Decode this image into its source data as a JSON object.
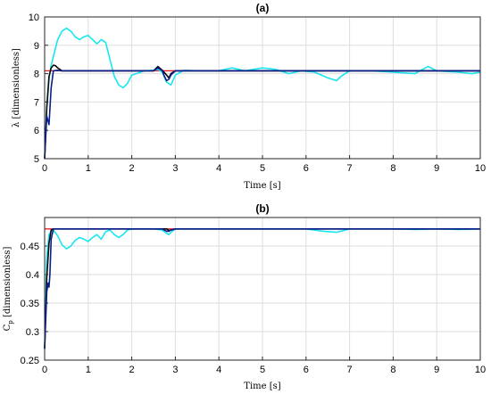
{
  "colors": {
    "reference": "#e8202a",
    "cyan": "#19e6f0",
    "navy": "#0b1f8c",
    "black": "#0a0a0a",
    "grid": "#dedede",
    "axis": "#262626"
  },
  "chart_data": [
    {
      "type": "line",
      "title": "(a)",
      "xlabel": "Time  [s]",
      "ylabel": "λ  [dimensionless]",
      "xlim": [
        0,
        10
      ],
      "ylim": [
        5,
        10
      ],
      "xticks": [
        "0",
        "1",
        "2",
        "3",
        "4",
        "5",
        "6",
        "7",
        "8",
        "9",
        "10"
      ],
      "yticks": [
        "5",
        "6",
        "7",
        "8",
        "9",
        "10"
      ],
      "grid": true,
      "series": [
        {
          "color_key": "reference",
          "x": [
            0,
            10
          ],
          "y": [
            8.1,
            8.1
          ]
        },
        {
          "color_key": "cyan",
          "x": [
            0,
            0.05,
            0.1,
            0.15,
            0.2,
            0.3,
            0.4,
            0.5,
            0.6,
            0.7,
            0.8,
            0.9,
            1.0,
            1.1,
            1.2,
            1.3,
            1.4,
            1.5,
            1.6,
            1.7,
            1.8,
            1.9,
            2.0,
            2.1,
            2.2,
            2.3,
            2.5,
            2.6,
            2.7,
            2.8,
            2.9,
            3.0,
            3.2,
            3.5,
            4.0,
            4.3,
            4.6,
            5.0,
            5.3,
            5.6,
            5.9,
            6.2,
            6.5,
            6.7,
            6.8,
            7.0,
            7.5,
            8.0,
            8.5,
            8.8,
            9.0,
            9.5,
            9.8,
            10.0
          ],
          "y": [
            5.0,
            6.8,
            7.8,
            8.3,
            8.6,
            9.2,
            9.5,
            9.6,
            9.5,
            9.3,
            9.2,
            9.3,
            9.35,
            9.2,
            9.05,
            9.2,
            9.1,
            8.5,
            7.9,
            7.6,
            7.5,
            7.65,
            7.95,
            8.0,
            8.05,
            8.1,
            8.12,
            8.15,
            8.05,
            7.7,
            7.6,
            7.95,
            8.12,
            8.1,
            8.1,
            8.2,
            8.1,
            8.2,
            8.15,
            8.0,
            8.1,
            8.05,
            7.85,
            7.75,
            7.9,
            8.1,
            8.1,
            8.05,
            8.0,
            8.25,
            8.1,
            8.05,
            8.0,
            8.05
          ]
        },
        {
          "color_key": "black",
          "x": [
            0,
            0.05,
            0.1,
            0.15,
            0.2,
            0.25,
            0.3,
            0.35,
            0.4,
            0.5,
            1.0,
            2.0,
            2.5,
            2.6,
            2.7,
            2.8,
            2.85,
            2.9,
            3.0,
            3.5,
            10.0
          ],
          "y": [
            5.0,
            6.8,
            7.9,
            8.2,
            8.3,
            8.28,
            8.2,
            8.15,
            8.1,
            8.1,
            8.1,
            8.1,
            8.1,
            8.25,
            8.12,
            7.95,
            7.85,
            8.0,
            8.1,
            8.1,
            8.1
          ]
        },
        {
          "color_key": "navy",
          "x": [
            0,
            0.05,
            0.1,
            0.15,
            0.2,
            0.3,
            0.4,
            0.5,
            1.0,
            2.0,
            2.5,
            2.6,
            2.7,
            2.75,
            2.8,
            2.85,
            2.9,
            3.0,
            3.5,
            10.0
          ],
          "y": [
            5.0,
            6.5,
            6.2,
            7.5,
            8.1,
            8.12,
            8.1,
            8.1,
            8.1,
            8.1,
            8.1,
            8.2,
            8.1,
            7.9,
            7.75,
            7.8,
            7.95,
            8.1,
            8.1,
            8.1
          ]
        }
      ]
    },
    {
      "type": "line",
      "title": "(b)",
      "xlabel": "Time  [s]",
      "ylabel": "Cp [dimensionless]",
      "xlim": [
        0,
        10
      ],
      "ylim": [
        0.25,
        0.5
      ],
      "xticks": [
        "0",
        "1",
        "2",
        "3",
        "4",
        "5",
        "6",
        "7",
        "8",
        "9",
        "10"
      ],
      "yticks": [
        "0.25",
        "0.3",
        "0.35",
        "0.4",
        "0.45"
      ],
      "grid": true,
      "series": [
        {
          "color_key": "reference",
          "x": [
            0,
            10
          ],
          "y": [
            0.48,
            0.48
          ]
        },
        {
          "color_key": "cyan",
          "x": [
            0,
            0.05,
            0.1,
            0.15,
            0.2,
            0.3,
            0.4,
            0.5,
            0.6,
            0.7,
            0.8,
            0.9,
            1.0,
            1.1,
            1.2,
            1.3,
            1.4,
            1.5,
            1.6,
            1.7,
            1.8,
            1.9,
            2.0,
            2.2,
            2.5,
            2.7,
            2.8,
            2.85,
            2.9,
            3.0,
            3.5,
            4.0,
            5.0,
            6.0,
            6.4,
            6.7,
            6.9,
            7.0,
            8.0,
            8.5,
            9.0,
            9.5,
            10.0
          ],
          "y": [
            0.27,
            0.43,
            0.47,
            0.476,
            0.478,
            0.468,
            0.452,
            0.445,
            0.45,
            0.46,
            0.465,
            0.462,
            0.458,
            0.465,
            0.47,
            0.462,
            0.475,
            0.478,
            0.47,
            0.465,
            0.47,
            0.478,
            0.48,
            0.48,
            0.48,
            0.478,
            0.472,
            0.47,
            0.474,
            0.48,
            0.48,
            0.48,
            0.48,
            0.48,
            0.476,
            0.474,
            0.478,
            0.48,
            0.48,
            0.479,
            0.48,
            0.479,
            0.48
          ]
        },
        {
          "color_key": "black",
          "x": [
            0,
            0.05,
            0.1,
            0.15,
            0.2,
            0.3,
            1.0,
            2.8,
            2.85,
            2.9,
            3.0,
            10.0
          ],
          "y": [
            0.27,
            0.395,
            0.455,
            0.478,
            0.48,
            0.48,
            0.48,
            0.48,
            0.477,
            0.478,
            0.48,
            0.48
          ]
        },
        {
          "color_key": "navy",
          "x": [
            0,
            0.05,
            0.08,
            0.1,
            0.12,
            0.15,
            0.2,
            0.3,
            1.0,
            2.7,
            2.8,
            2.85,
            2.9,
            3.0,
            10.0
          ],
          "y": [
            0.27,
            0.37,
            0.385,
            0.378,
            0.4,
            0.462,
            0.48,
            0.48,
            0.48,
            0.48,
            0.476,
            0.476,
            0.478,
            0.48,
            0.48
          ]
        }
      ]
    }
  ]
}
